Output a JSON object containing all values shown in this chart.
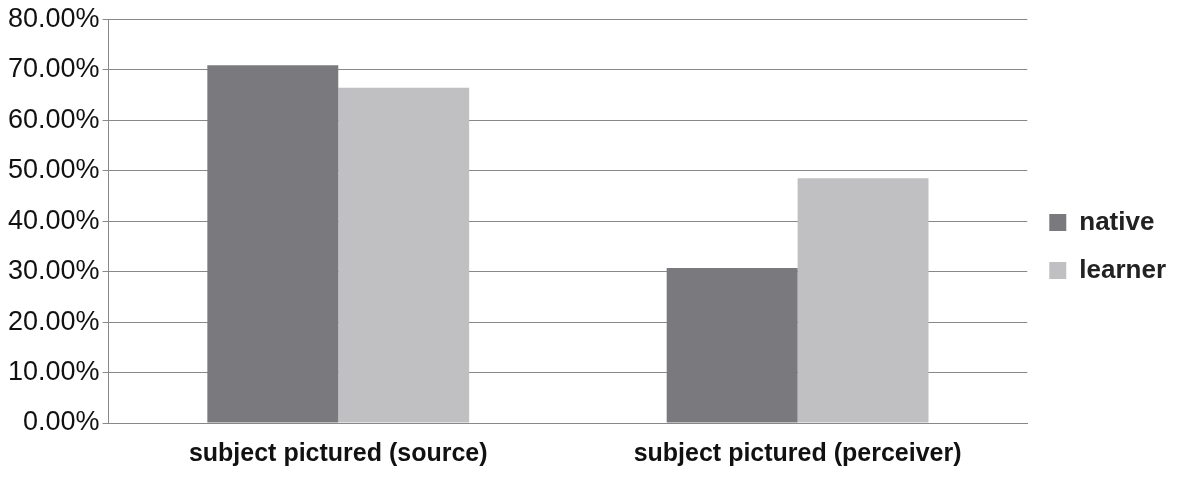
{
  "chart_data": {
    "type": "bar",
    "categories": [
      "subject pictured (source)",
      "subject pictured (perceiver)"
    ],
    "series": [
      {
        "name": "native",
        "color": "#7a797d",
        "values": [
          0.709,
          0.307
        ]
      },
      {
        "name": "learner",
        "color": "#c0c0c2",
        "values": [
          0.664,
          0.485
        ]
      }
    ],
    "ylim": [
      0,
      0.8
    ],
    "yticks": [
      {
        "value": 0,
        "label": "0.00%"
      },
      {
        "value": 0.1,
        "label": "10.00%"
      },
      {
        "value": 0.2,
        "label": "20.00%"
      },
      {
        "value": 0.3,
        "label": "30.00%"
      },
      {
        "value": 0.4,
        "label": "40.00%"
      },
      {
        "value": 0.5,
        "label": "50.00%"
      },
      {
        "value": 0.6,
        "label": "60.00%"
      },
      {
        "value": 0.7,
        "label": "70.00%"
      },
      {
        "value": 0.8,
        "label": "80.00%"
      }
    ],
    "grid": "y",
    "legend": "right"
  }
}
